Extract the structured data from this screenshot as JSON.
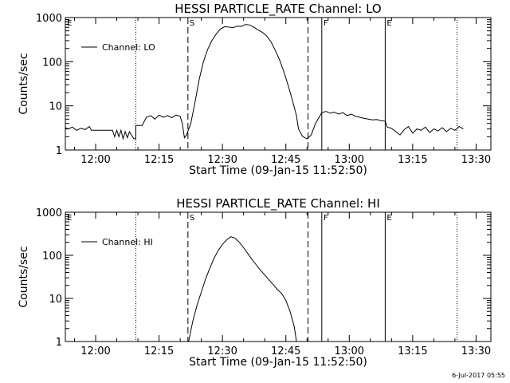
{
  "footer": {
    "timestamp": "6-Jul-2017 05:55"
  },
  "chart_data": [
    {
      "type": "line",
      "title": "HESSI PARTICLE_RATE Channel: LO",
      "xlabel": "Start Time (09-Jan-15 11:52:50)",
      "ylabel": "Counts/sec",
      "yscale": "log",
      "ylim": [
        1,
        1000
      ],
      "xlim": [
        "11:52:50",
        "13:33:30"
      ],
      "xtick_labels": [
        "12:00",
        "12:15",
        "12:30",
        "12:45",
        "13:00",
        "13:15",
        "13:30"
      ],
      "ytick_labels": [
        "1",
        "10",
        "100",
        "1000"
      ],
      "legend": {
        "entries": [
          "Channel: LO"
        ],
        "position": "top-left"
      },
      "markers": [
        {
          "time": "11:52:50",
          "style": "dotted",
          "label": "E"
        },
        {
          "time": "12:09:30",
          "style": "dotted",
          "label": ""
        },
        {
          "time": "12:21:50",
          "style": "dashed",
          "label": "S"
        },
        {
          "time": "12:50:15",
          "style": "dashed",
          "label": ""
        },
        {
          "time": "12:53:30",
          "style": "solid",
          "label": "F"
        },
        {
          "time": "13:08:30",
          "style": "solid",
          "label": "E"
        },
        {
          "time": "13:25:30",
          "style": "dotted",
          "label": ""
        }
      ],
      "series": [
        {
          "name": "Channel: LO",
          "x": [
            "11:52:50",
            "11:53:30",
            "11:54:30",
            "11:55:30",
            "11:56:30",
            "11:57:30",
            "11:58:30",
            "11:59:00",
            "12:00:00",
            "12:01:00",
            "12:02:00",
            "12:03:00",
            "12:04:00",
            "12:04:30",
            "12:05:00",
            "12:05:30",
            "12:06:00",
            "12:06:30",
            "12:07:00",
            "12:07:30",
            "12:08:00",
            "12:09:00",
            "12:09:30",
            "12:09:30",
            "12:11:00",
            "12:12:00",
            "12:13:00",
            "12:14:00",
            "12:15:00",
            "12:16:00",
            "12:17:00",
            "12:18:00",
            "12:19:00",
            "12:20:00",
            "12:20:30",
            "12:21:00",
            "12:21:30",
            "12:22:30",
            "12:23:30",
            "12:24:30",
            "12:25:30",
            "12:26:30",
            "12:27:30",
            "12:28:30",
            "12:29:30",
            "12:30:30",
            "12:31:30",
            "12:32:30",
            "12:33:30",
            "12:34:30",
            "12:35:30",
            "12:36:30",
            "12:37:30",
            "12:38:30",
            "12:39:30",
            "12:40:30",
            "12:41:30",
            "12:42:30",
            "12:43:30",
            "12:44:30",
            "12:45:30",
            "12:46:30",
            "12:47:30",
            "12:48:00",
            "12:49:00",
            "12:50:00",
            "12:51:00",
            "12:52:00",
            "12:53:30",
            "12:54:30",
            "12:55:30",
            "12:56:30",
            "12:57:30",
            "12:58:30",
            "12:59:30",
            "13:00:30",
            "13:01:30",
            "13:02:30",
            "13:03:30",
            "13:04:30",
            "13:05:30",
            "13:06:30",
            "13:07:30",
            "13:08:30",
            "13:09:00",
            "13:10:00",
            "13:11:00",
            "13:12:00",
            "13:13:00",
            "13:14:00",
            "13:15:00",
            "13:16:00",
            "13:17:00",
            "13:18:00",
            "13:19:00",
            "13:20:00",
            "13:21:00",
            "13:22:00",
            "13:23:00",
            "13:24:00",
            "13:25:00",
            "13:26:00",
            "13:27:00"
          ],
          "y": [
            3.2,
            3.0,
            3.3,
            2.8,
            3.1,
            2.9,
            3.4,
            2.8,
            2.8,
            2.8,
            2.8,
            2.8,
            2.8,
            2.0,
            2.8,
            2.0,
            2.8,
            1.8,
            2.6,
            1.9,
            2.6,
            1.8,
            1.8,
            3.6,
            3.6,
            5.5,
            6.0,
            5.0,
            6.2,
            5.5,
            6.0,
            5.4,
            6.2,
            5.8,
            4.0,
            1.9,
            2.2,
            4.0,
            12,
            40,
            100,
            190,
            300,
            420,
            550,
            620,
            610,
            590,
            640,
            630,
            700,
            680,
            600,
            520,
            460,
            380,
            280,
            180,
            110,
            60,
            30,
            14,
            6,
            3,
            2.0,
            1.8,
            2.2,
            4.0,
            7.0,
            7.5,
            6.8,
            7.2,
            6.5,
            7.0,
            6.0,
            6.5,
            5.8,
            5.5,
            5.2,
            5.0,
            4.8,
            4.9,
            4.6,
            4.5,
            3.3,
            3.1,
            2.6,
            2.2,
            2.9,
            3.4,
            2.4,
            3.0,
            2.8,
            3.3,
            2.5,
            3.0,
            2.7,
            3.2,
            2.6,
            3.1,
            2.8,
            3.4,
            3.0
          ]
        }
      ]
    },
    {
      "type": "line",
      "title": "HESSI PARTICLE_RATE Channel: HI",
      "xlabel": "Start Time (09-Jan-15 11:52:50)",
      "ylabel": "Counts/sec",
      "yscale": "log",
      "ylim": [
        1,
        1000
      ],
      "xlim": [
        "11:52:50",
        "13:33:30"
      ],
      "xtick_labels": [
        "12:00",
        "12:15",
        "12:30",
        "12:45",
        "13:00",
        "13:15",
        "13:30"
      ],
      "ytick_labels": [
        "1",
        "10",
        "100",
        "1000"
      ],
      "legend": {
        "entries": [
          "Channel: HI"
        ],
        "position": "top-left"
      },
      "markers": [
        {
          "time": "11:52:50",
          "style": "dotted",
          "label": "E"
        },
        {
          "time": "12:09:30",
          "style": "dotted",
          "label": ""
        },
        {
          "time": "12:21:50",
          "style": "dashed",
          "label": "S"
        },
        {
          "time": "12:50:15",
          "style": "dashed",
          "label": ""
        },
        {
          "time": "12:53:30",
          "style": "solid",
          "label": "F"
        },
        {
          "time": "13:08:30",
          "style": "solid",
          "label": "E"
        },
        {
          "time": "13:25:30",
          "style": "dotted",
          "label": ""
        }
      ],
      "series": [
        {
          "name": "Channel: HI",
          "x": [
            "12:22:00",
            "12:23:00",
            "12:24:00",
            "12:25:00",
            "12:26:00",
            "12:27:00",
            "12:28:00",
            "12:29:00",
            "12:30:00",
            "12:31:00",
            "12:32:00",
            "12:33:00",
            "12:34:00",
            "12:35:00",
            "12:36:00",
            "12:37:00",
            "12:38:00",
            "12:39:00",
            "12:40:00",
            "12:41:00",
            "12:42:00",
            "12:43:00",
            "12:44:00",
            "12:45:00",
            "12:46:00",
            "12:47:00",
            "12:47:30"
          ],
          "y": [
            1.0,
            3.0,
            7.0,
            14,
            28,
            50,
            85,
            130,
            180,
            230,
            270,
            250,
            200,
            150,
            110,
            80,
            60,
            45,
            35,
            27,
            21,
            16,
            13,
            9,
            5,
            2.2,
            1.0
          ]
        }
      ]
    }
  ]
}
